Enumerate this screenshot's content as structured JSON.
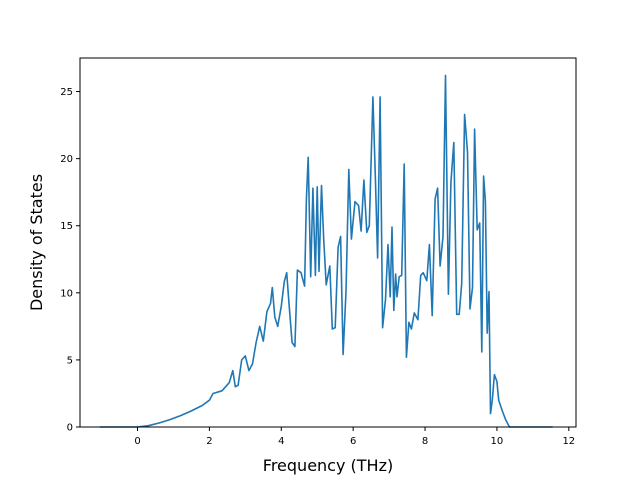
{
  "chart_data": {
    "type": "line",
    "title": "",
    "xlabel": "Frequency (THz)",
    "ylabel": "Density of States",
    "xlim": [
      -1.6,
      12.2
    ],
    "ylim": [
      0,
      27.5
    ],
    "x_ticks": [
      0,
      2,
      4,
      6,
      8,
      10,
      12
    ],
    "y_ticks": [
      0,
      5,
      10,
      15,
      20,
      25
    ],
    "grid": false,
    "legend": "none",
    "line_color": "#1f77b4",
    "series": [
      {
        "x": [
          -1.05,
          0.0,
          0.3,
          0.6,
          0.9,
          1.2,
          1.5,
          1.8,
          2.0,
          2.1,
          2.35,
          2.55,
          2.65,
          2.72,
          2.8,
          2.9,
          3.0,
          3.1,
          3.2,
          3.3,
          3.4,
          3.5,
          3.6,
          3.7,
          3.75,
          3.82,
          3.9,
          4.0,
          4.08,
          4.15,
          4.22,
          4.3,
          4.38,
          4.45,
          4.55,
          4.65,
          4.7,
          4.75,
          4.82,
          4.88,
          4.95,
          5.0,
          5.05,
          5.12,
          5.18,
          5.25,
          5.35,
          5.42,
          5.5,
          5.58,
          5.65,
          5.72,
          5.8,
          5.88,
          5.95,
          6.05,
          6.15,
          6.22,
          6.3,
          6.38,
          6.45,
          6.55,
          6.62,
          6.68,
          6.75,
          6.82,
          6.9,
          6.97,
          7.03,
          7.08,
          7.13,
          7.18,
          7.22,
          7.28,
          7.35,
          7.42,
          7.48,
          7.55,
          7.62,
          7.7,
          7.8,
          7.88,
          7.95,
          8.05,
          8.12,
          8.2,
          8.28,
          8.35,
          8.42,
          8.5,
          8.57,
          8.65,
          8.72,
          8.8,
          8.88,
          8.95,
          9.02,
          9.1,
          9.18,
          9.25,
          9.32,
          9.38,
          9.45,
          9.52,
          9.58,
          9.63,
          9.68,
          9.73,
          9.78,
          9.82,
          9.87,
          9.93,
          10.0,
          10.05,
          10.15,
          10.25,
          10.35,
          10.45,
          10.6,
          11.55
        ],
        "y": [
          0.0,
          0.0,
          0.1,
          0.3,
          0.55,
          0.85,
          1.2,
          1.6,
          2.0,
          2.5,
          2.7,
          3.3,
          4.2,
          3.0,
          3.1,
          5.0,
          5.3,
          4.2,
          4.7,
          6.3,
          7.5,
          6.4,
          8.6,
          9.2,
          10.4,
          8.2,
          7.5,
          9.0,
          10.8,
          11.5,
          9.0,
          6.3,
          6.0,
          11.7,
          11.5,
          10.5,
          17.0,
          20.1,
          11.2,
          17.8,
          11.3,
          17.9,
          11.6,
          18.0,
          14.0,
          10.6,
          12.0,
          7.3,
          7.4,
          13.4,
          14.2,
          5.4,
          10.1,
          19.2,
          14.0,
          16.8,
          16.5,
          14.6,
          18.4,
          14.5,
          15.0,
          24.6,
          18.5,
          12.6,
          24.6,
          7.4,
          9.5,
          13.6,
          9.7,
          14.9,
          8.7,
          11.4,
          9.7,
          11.2,
          11.3,
          19.6,
          5.2,
          7.8,
          7.3,
          8.5,
          8.0,
          11.3,
          11.5,
          10.9,
          13.6,
          8.3,
          17.0,
          17.8,
          12.0,
          14.2,
          26.2,
          9.9,
          18.2,
          21.2,
          8.4,
          8.4,
          10.7,
          23.3,
          20.5,
          8.8,
          10.4,
          22.2,
          14.7,
          15.2,
          5.6,
          18.7,
          16.8,
          7.0,
          10.1,
          1.0,
          2.0,
          3.9,
          3.4,
          2.0,
          1.2,
          0.5,
          0.0,
          0.0,
          0.0,
          0.0
        ]
      }
    ]
  }
}
